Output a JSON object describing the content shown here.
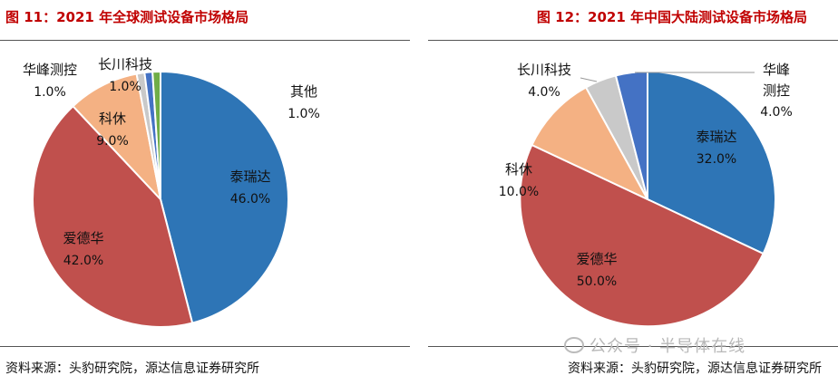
{
  "chart_data": [
    {
      "type": "pie",
      "title": "图 11：2021 年全球测试设备市场格局",
      "source": "资料来源：头豹研究院，源达信息证券研究所",
      "slices": [
        {
          "label": "泰瑞达",
          "value": 46.0,
          "value_text": "46.0%",
          "color": "#2e75b6"
        },
        {
          "label": "爱德华",
          "value": 42.0,
          "value_text": "42.0%",
          "color": "#c0504d"
        },
        {
          "label": "科休",
          "value": 9.0,
          "value_text": "9.0%",
          "color": "#f4b183"
        },
        {
          "label": "华峰测控",
          "value": 1.0,
          "value_text": "1.0%",
          "color": "#c9c9c9"
        },
        {
          "label": "长川科技",
          "value": 1.0,
          "value_text": "1.0%",
          "color": "#4472c4"
        },
        {
          "label": "其他",
          "value": 1.0,
          "value_text": "1.0%",
          "color": "#70ad47"
        }
      ]
    },
    {
      "type": "pie",
      "title": "图 12：2021 年中国大陆测试设备市场格局",
      "source": "资料来源：头豹研究院，源达信息证券研究所",
      "slices": [
        {
          "label": "泰瑞达",
          "value": 32.0,
          "value_text": "32.0%",
          "color": "#2e75b6"
        },
        {
          "label": "爱德华",
          "value": 50.0,
          "value_text": "50.0%",
          "color": "#c0504d"
        },
        {
          "label": "科休",
          "value": 10.0,
          "value_text": "10.0%",
          "color": "#f4b183"
        },
        {
          "label": "长川科技",
          "value": 4.0,
          "value_text": "4.0%",
          "color": "#c9c9c9"
        },
        {
          "label": "华峰测控",
          "value": 4.0,
          "value_text": "4.0%",
          "color": "#4472c4"
        }
      ]
    }
  ],
  "watermark": "公众号 · 半导体在线"
}
